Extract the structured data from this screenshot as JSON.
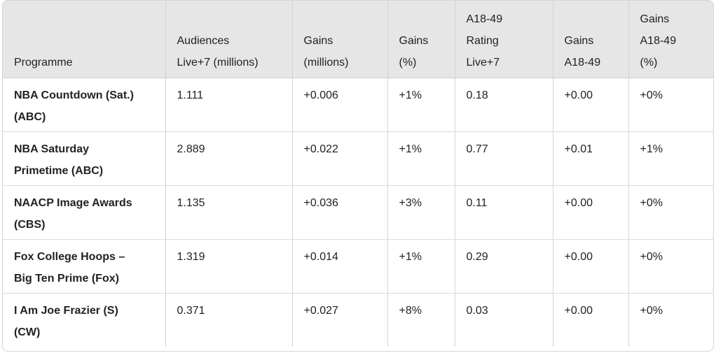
{
  "table": {
    "headers": [
      [
        "Programme"
      ],
      [
        "Audiences",
        "Live+7 (millions)"
      ],
      [
        "Gains",
        "(millions)"
      ],
      [
        "Gains",
        "(%)"
      ],
      [
        "A18-49",
        "Rating",
        "Live+7"
      ],
      [
        "Gains",
        "A18-49"
      ],
      [
        "Gains",
        "A18-49",
        "(%)"
      ]
    ],
    "rows": [
      [
        [
          "NBA Countdown (Sat.)",
          "(ABC)"
        ],
        "1.111",
        "+0.006",
        "+1%",
        "0.18",
        "+0.00",
        "+0%"
      ],
      [
        [
          "NBA Saturday",
          "Primetime (ABC)"
        ],
        "2.889",
        "+0.022",
        "+1%",
        "0.77",
        "+0.01",
        "+1%"
      ],
      [
        [
          "NAACP Image Awards",
          "(CBS)"
        ],
        "1.135",
        "+0.036",
        "+3%",
        "0.11",
        "+0.00",
        "+0%"
      ],
      [
        [
          "Fox College Hoops –",
          "Big Ten Prime (Fox)"
        ],
        "1.319",
        "+0.014",
        "+1%",
        "0.29",
        "+0.00",
        "+0%"
      ],
      [
        [
          "I Am Joe Frazier (S)",
          "(CW)"
        ],
        "0.371",
        "+0.027",
        "+8%",
        "0.03",
        "+0.00",
        "+0%"
      ]
    ]
  }
}
